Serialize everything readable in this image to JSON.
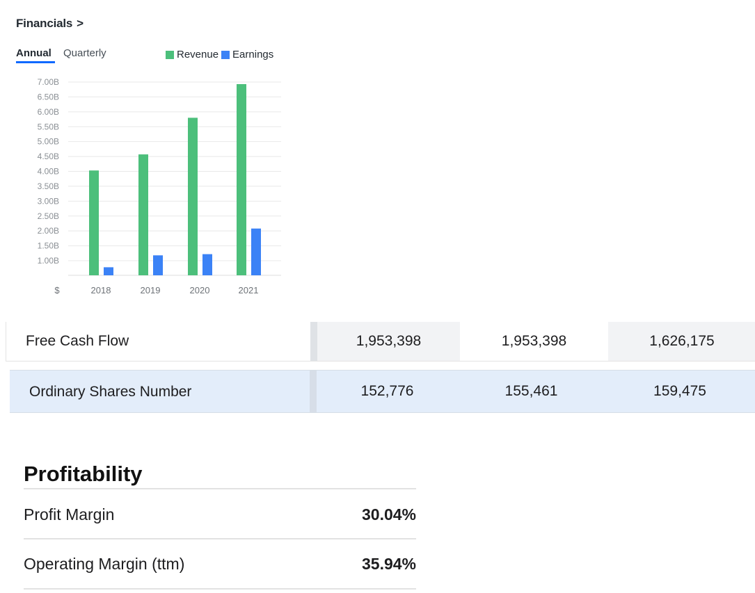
{
  "financials": {
    "title": "Financials",
    "chevron": ">",
    "tabs": [
      "Annual",
      "Quarterly"
    ],
    "active_tab": "Annual",
    "legend": [
      {
        "label": "Revenue",
        "color": "#4cbf7b"
      },
      {
        "label": "Earnings",
        "color": "#3b82f6"
      }
    ]
  },
  "chart_data": {
    "type": "bar",
    "categories": [
      "2018",
      "2019",
      "2020",
      "2021"
    ],
    "series": [
      {
        "name": "Revenue",
        "color": "#4cbf7b",
        "values": [
          4.03,
          4.57,
          5.8,
          6.93
        ]
      },
      {
        "name": "Earnings",
        "color": "#3b82f6",
        "values": [
          0.78,
          1.18,
          1.22,
          2.08
        ]
      }
    ],
    "unit": "B",
    "ylim": [
      0.5,
      7.0
    ],
    "yticks": [
      "7.00B",
      "6.50B",
      "6.00B",
      "5.50B",
      "5.00B",
      "4.50B",
      "4.00B",
      "3.50B",
      "3.00B",
      "2.50B",
      "2.00B",
      "1.50B",
      "1.00B"
    ],
    "ytick_values": [
      7.0,
      6.5,
      6.0,
      5.5,
      5.0,
      4.5,
      4.0,
      3.5,
      3.0,
      2.5,
      2.0,
      1.5,
      1.0
    ],
    "x_prefix": "$",
    "grid": true,
    "legend_position": "top"
  },
  "table": {
    "rows": [
      {
        "label": "Free Cash Flow",
        "values": [
          "1,953,398",
          "1,953,398",
          "1,626,175"
        ]
      },
      {
        "label": "Ordinary Shares Number",
        "values": [
          "152,776",
          "155,461",
          "159,475"
        ]
      }
    ]
  },
  "profitability": {
    "title": "Profitability",
    "rows": [
      {
        "label": "Profit Margin",
        "value": "30.04%"
      },
      {
        "label": "Operating Margin (ttm)",
        "value": "35.94%"
      }
    ]
  }
}
